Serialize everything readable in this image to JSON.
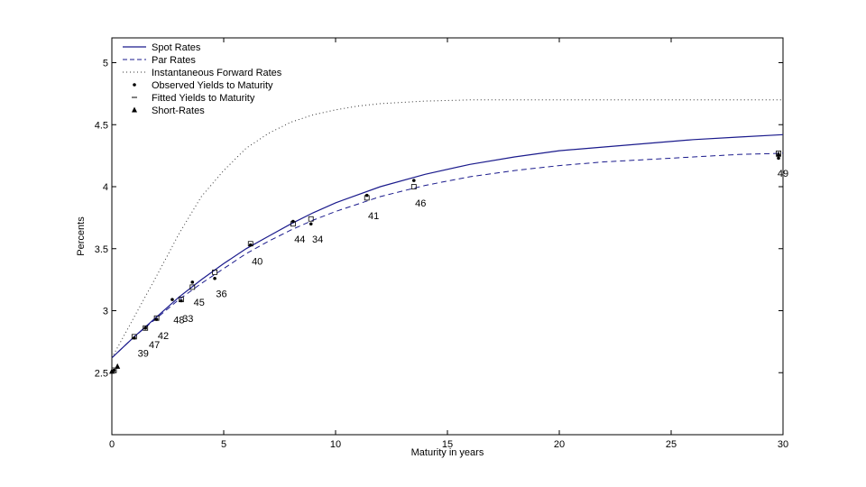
{
  "chart_data": {
    "type": "line",
    "xlabel": "Maturity in years",
    "ylabel": "Percents",
    "xlim": [
      0,
      30
    ],
    "ylim": [
      2.0,
      5.2
    ],
    "xticks": [
      "0",
      "5",
      "10",
      "15",
      "20",
      "25",
      "30"
    ],
    "yticks": [
      "2.5",
      "3",
      "3.5",
      "4",
      "4.5",
      "5"
    ],
    "ytick_values": [
      2.5,
      3,
      3.5,
      4,
      4.5,
      5
    ],
    "xtick_values": [
      0,
      5,
      10,
      15,
      20,
      25,
      30
    ],
    "grid": false,
    "legend_position": "top-left",
    "legend": [
      {
        "label": "Spot Rates",
        "style": "solid-line"
      },
      {
        "label": "Par Rates",
        "style": "dashed-line"
      },
      {
        "label": "Instantaneous Forward Rates",
        "style": "dotted-line"
      },
      {
        "label": "Observed Yields to Maturity",
        "style": "dot-marker"
      },
      {
        "label": "Fitted Yields to Maturity",
        "style": "dash-marker"
      },
      {
        "label": "Short-Rates",
        "style": "triangle-marker"
      }
    ],
    "series": [
      {
        "name": "Spot Rates",
        "x": [
          0,
          1,
          2,
          3,
          4,
          5,
          6,
          7,
          8,
          9,
          10,
          12,
          14,
          16,
          18,
          20,
          22,
          24,
          26,
          28,
          30
        ],
        "values": [
          2.62,
          2.79,
          2.95,
          3.11,
          3.25,
          3.38,
          3.5,
          3.6,
          3.7,
          3.79,
          3.87,
          4.0,
          4.1,
          4.18,
          4.24,
          4.29,
          4.32,
          4.35,
          4.38,
          4.4,
          4.42
        ]
      },
      {
        "name": "Par Rates",
        "x": [
          0,
          1,
          2,
          3,
          4,
          5,
          6,
          7,
          8,
          9,
          10,
          12,
          14,
          16,
          18,
          20,
          22,
          24,
          26,
          28,
          30
        ],
        "values": [
          2.62,
          2.79,
          2.94,
          3.09,
          3.22,
          3.34,
          3.46,
          3.56,
          3.65,
          3.73,
          3.8,
          3.92,
          4.01,
          4.08,
          4.13,
          4.17,
          4.2,
          4.22,
          4.24,
          4.26,
          4.27
        ]
      },
      {
        "name": "Instantaneous Forward Rates",
        "x": [
          0,
          1,
          2,
          3,
          4,
          5,
          6,
          7,
          8,
          9,
          10,
          11,
          12,
          14,
          16,
          20,
          25,
          30
        ],
        "values": [
          2.62,
          2.95,
          3.28,
          3.62,
          3.92,
          4.13,
          4.31,
          4.43,
          4.52,
          4.58,
          4.62,
          4.65,
          4.67,
          4.69,
          4.7,
          4.7,
          4.7,
          4.7
        ]
      }
    ],
    "observed_yields": [
      {
        "x": 0.1,
        "y": 2.52
      },
      {
        "x": 1.0,
        "y": 2.78
      },
      {
        "x": 1.5,
        "y": 2.86
      },
      {
        "x": 2.0,
        "y": 2.93
      },
      {
        "x": 2.7,
        "y": 3.09
      },
      {
        "x": 3.1,
        "y": 3.08
      },
      {
        "x": 3.6,
        "y": 3.23
      },
      {
        "x": 4.6,
        "y": 3.26
      },
      {
        "x": 6.2,
        "y": 3.53
      },
      {
        "x": 8.1,
        "y": 3.72
      },
      {
        "x": 8.9,
        "y": 3.7
      },
      {
        "x": 11.4,
        "y": 3.93
      },
      {
        "x": 13.5,
        "y": 4.05
      },
      {
        "x": 29.8,
        "y": 4.23
      }
    ],
    "fitted_yields": [
      {
        "x": 0.1,
        "y": 2.52
      },
      {
        "x": 1.0,
        "y": 2.79
      },
      {
        "x": 1.5,
        "y": 2.86
      },
      {
        "x": 2.0,
        "y": 2.94
      },
      {
        "x": 3.1,
        "y": 3.09
      },
      {
        "x": 3.6,
        "y": 3.19
      },
      {
        "x": 4.6,
        "y": 3.31
      },
      {
        "x": 6.2,
        "y": 3.54
      },
      {
        "x": 8.1,
        "y": 3.7
      },
      {
        "x": 8.9,
        "y": 3.74
      },
      {
        "x": 11.4,
        "y": 3.91
      },
      {
        "x": 13.5,
        "y": 4.0
      },
      {
        "x": 29.8,
        "y": 4.27
      }
    ],
    "short_rates": [
      {
        "x": 0.0,
        "y": 2.51
      },
      {
        "x": 0.25,
        "y": 2.55
      },
      {
        "x": 29.8,
        "y": 4.26
      }
    ],
    "annotations": [
      {
        "text": "39",
        "x": 1.4,
        "y": 2.63
      },
      {
        "text": "47",
        "x": 1.9,
        "y": 2.7
      },
      {
        "text": "42",
        "x": 2.3,
        "y": 2.77
      },
      {
        "text": "48",
        "x": 3.0,
        "y": 2.9
      },
      {
        "text": "33",
        "x": 3.4,
        "y": 2.91
      },
      {
        "text": "45",
        "x": 3.9,
        "y": 3.04
      },
      {
        "text": "36",
        "x": 4.9,
        "y": 3.11
      },
      {
        "text": "40",
        "x": 6.5,
        "y": 3.37
      },
      {
        "text": "44",
        "x": 8.4,
        "y": 3.55
      },
      {
        "text": "34",
        "x": 9.2,
        "y": 3.55
      },
      {
        "text": "41",
        "x": 11.7,
        "y": 3.74
      },
      {
        "text": "46",
        "x": 13.8,
        "y": 3.84
      },
      {
        "text": "49",
        "x": 30.0,
        "y": 4.08
      }
    ]
  }
}
